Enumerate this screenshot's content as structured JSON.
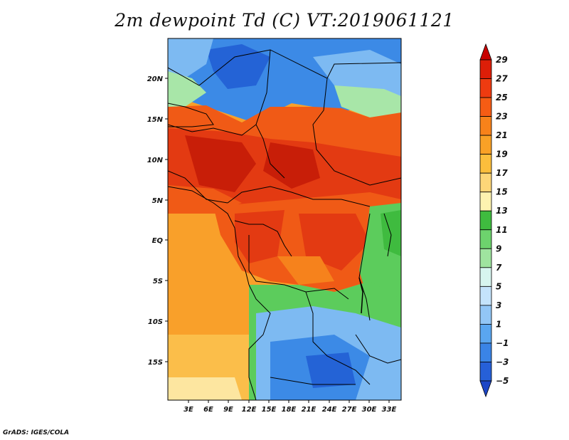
{
  "title": "2m dewpoint Td (C) VT:2019061121",
  "credit": "GrADS: IGES/COLA",
  "lat_labels": [
    "20N",
    "15N",
    "10N",
    "5N",
    "EQ",
    "5S",
    "10S",
    "15S"
  ],
  "lon_labels": [
    "3E",
    "6E",
    "9E",
    "12E",
    "15E",
    "18E",
    "21E",
    "24E",
    "27E",
    "30E",
    "33E"
  ],
  "colorbar": {
    "labels": [
      "29",
      "27",
      "25",
      "23",
      "21",
      "19",
      "17",
      "15",
      "13",
      "11",
      "9",
      "7",
      "5",
      "3",
      "1",
      "-1",
      "-3",
      "-5"
    ],
    "colors": [
      "#c80000",
      "#dd1e08",
      "#ee3b10",
      "#f65c14",
      "#f8821a",
      "#f9a126",
      "#fbbe3c",
      "#fdd678",
      "#fdf3b0",
      "#3fbb3f",
      "#6dd36d",
      "#9fe49f",
      "#d7f5ef",
      "#c4e3fb",
      "#92c6f6",
      "#5aa6f0",
      "#3a84e6",
      "#2660d8",
      "#1c46c6"
    ]
  },
  "map_colors": {
    "deep_red": "#c81e08",
    "red": "#e33a12",
    "red_orange": "#f05a16",
    "orange": "#f6821c",
    "light_orange": "#f9a02a",
    "yellow_orange": "#fbbe4a",
    "pale_yellow": "#fde6a0",
    "green": "#5ccc5c",
    "light_green": "#a8e6a8",
    "light_blue": "#7dbaf2",
    "blue": "#3c8ae6",
    "dark_blue": "#2463d6"
  }
}
